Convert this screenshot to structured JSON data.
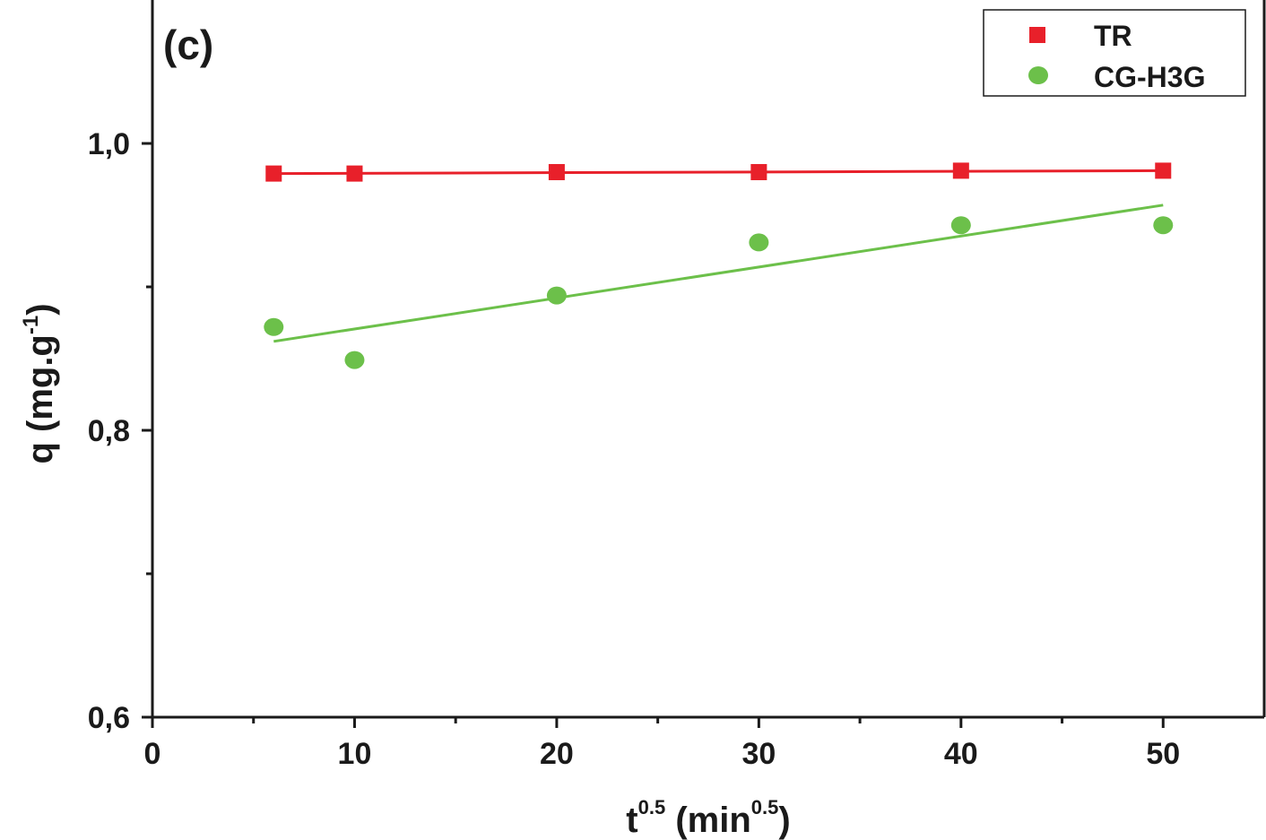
{
  "chart_data": {
    "type": "scatter",
    "panel_label": "(c)",
    "xlabel": {
      "base": "t",
      "sup": "0.5",
      "unit_open": " (min",
      "unit_sup": "0.5",
      "unit_close": ")"
    },
    "ylabel": {
      "text": "q (mg.g",
      "sup": "-1",
      "close": ")"
    },
    "xlim": [
      0,
      55
    ],
    "ylim": [
      0.6,
      1.1
    ],
    "x_ticks": [
      {
        "value": 0,
        "label": "0"
      },
      {
        "value": 10,
        "label": "10"
      },
      {
        "value": 20,
        "label": "20"
      },
      {
        "value": 30,
        "label": "30"
      },
      {
        "value": 40,
        "label": "40"
      },
      {
        "value": 50,
        "label": "50"
      }
    ],
    "x_minor_ticks": [
      5,
      15,
      25,
      35,
      45
    ],
    "y_ticks": [
      {
        "value": 0.6,
        "label": "0,6"
      },
      {
        "value": 0.8,
        "label": "0,8"
      },
      {
        "value": 1.0,
        "label": "1,0"
      }
    ],
    "y_minor_ticks": [
      0.7,
      0.9
    ],
    "grid": false,
    "legend_position": "top-right",
    "series": [
      {
        "name": "TR",
        "marker": "square",
        "color": "#e8202a",
        "x": [
          6,
          10,
          20,
          30,
          40,
          50
        ],
        "y": [
          0.979,
          0.979,
          0.98,
          0.98,
          0.981,
          0.981
        ],
        "fit": {
          "x": [
            6,
            50
          ],
          "y": [
            0.979,
            0.981
          ]
        }
      },
      {
        "name": "CG-H3G",
        "marker": "circle",
        "color": "#6cc04a",
        "x": [
          6,
          10,
          20,
          30,
          40,
          50
        ],
        "y": [
          0.872,
          0.849,
          0.894,
          0.931,
          0.943,
          0.943
        ],
        "fit": {
          "x": [
            6,
            50
          ],
          "y": [
            0.862,
            0.957
          ]
        }
      }
    ]
  }
}
